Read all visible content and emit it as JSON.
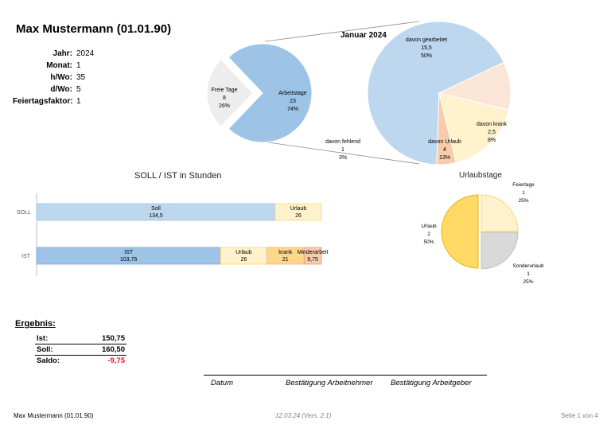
{
  "header": {
    "title": "Max Mustermann (01.01.90)"
  },
  "params": [
    {
      "label": "Jahr:",
      "value": "2024"
    },
    {
      "label": "Monat:",
      "value": "1"
    },
    {
      "label": "h/Wo:",
      "value": "35"
    },
    {
      "label": "d/Wo:",
      "value": "5"
    },
    {
      "label": "Feiertagsfaktor:",
      "value": "1"
    }
  ],
  "colors": {
    "blue_dark": "#9dc3e6",
    "blue_light": "#bdd7ee",
    "grey_light": "#ededed",
    "yellow_light": "#fff2cc",
    "yellow_mid": "#ffe699",
    "orange_mid": "#ffd78a",
    "salmon": "#f8cbad",
    "peach": "#fbe5d6",
    "yellow_strong": "#ffd966",
    "grey_mid": "#d9d9d9",
    "red_text": "#d42020"
  },
  "charts": {
    "monthly_pie": {
      "title": "Januar 2024",
      "slices": [
        {
          "label": "Arbeitstage",
          "value": "23",
          "pct": "74%",
          "num": 23
        },
        {
          "label": "Freie Tage",
          "value": "8",
          "pct": "26%",
          "num": 8
        }
      ]
    },
    "detail_pie": {
      "slices": [
        {
          "label": "davon gearbeitet",
          "value": "15,5",
          "pct": "50%",
          "num": 15.5
        },
        {
          "label": "davon krank",
          "value": "2,5",
          "pct": "8%",
          "num": 2.5
        },
        {
          "label": "davon Urlaub",
          "value": "4",
          "pct": "13%",
          "num": 4
        },
        {
          "label": "davon fehlend",
          "value": "1",
          "pct": "3%",
          "num": 1
        }
      ]
    },
    "bars": {
      "title": "SOLL / IST in Stunden",
      "categories": [
        "SOLL",
        "IST"
      ],
      "soll": [
        {
          "label": "Soll",
          "value": "134,5",
          "num": 134.5
        },
        {
          "label": "Urlaub",
          "value": "26",
          "num": 26
        }
      ],
      "ist": [
        {
          "label": "IST",
          "value": "103,75",
          "num": 103.75
        },
        {
          "label": "Urlaub",
          "value": "26",
          "num": 26
        },
        {
          "label": "krank",
          "value": "21",
          "num": 21
        },
        {
          "label": "Minderarbeit",
          "value": "9,75",
          "num": 9.75
        }
      ]
    },
    "vacation_pie": {
      "title": "Urlaubstage",
      "slices": [
        {
          "label": "Feiertage",
          "value": "1",
          "pct": "25%",
          "num": 1
        },
        {
          "label": "Sonderurlaub",
          "value": "1",
          "pct": "25%",
          "num": 1
        },
        {
          "label": "Urlaub",
          "value": "2",
          "pct": "50%",
          "num": 2
        }
      ]
    }
  },
  "chart_data": [
    {
      "type": "pie",
      "title": "Januar 2024",
      "categories": [
        "Arbeitstage",
        "Freie Tage"
      ],
      "values": [
        23,
        8
      ]
    },
    {
      "type": "pie",
      "title": "",
      "categories": [
        "davon gearbeitet",
        "davon krank",
        "davon Urlaub",
        "davon fehlend"
      ],
      "values": [
        15.5,
        2.5,
        4,
        1
      ]
    },
    {
      "type": "bar",
      "title": "SOLL / IST in Stunden",
      "categories": [
        "SOLL",
        "IST"
      ],
      "series": [
        {
          "name": "Soll",
          "values": [
            134.5,
            0
          ]
        },
        {
          "name": "Urlaub",
          "values": [
            26,
            26
          ]
        },
        {
          "name": "IST",
          "values": [
            0,
            103.75
          ]
        },
        {
          "name": "krank",
          "values": [
            0,
            21
          ]
        },
        {
          "name": "Minderarbeit",
          "values": [
            0,
            9.75
          ]
        }
      ]
    },
    {
      "type": "pie",
      "title": "Urlaubstage",
      "categories": [
        "Feiertage",
        "Sonderurlaub",
        "Urlaub"
      ],
      "values": [
        1,
        1,
        2
      ]
    }
  ],
  "results": {
    "title": "Ergebnis:",
    "rows": [
      {
        "label": "Ist:",
        "value": "150,75"
      },
      {
        "label": "Soll:",
        "value": "160,50"
      },
      {
        "label": "Saldo:",
        "value": "-9,75"
      }
    ]
  },
  "signature": {
    "datum": "Datum",
    "arbeitnehmer": "Bestätigung Arbeitnehmer",
    "arbeitgeber": "Bestätigung Arbeitgeber"
  },
  "footer": {
    "left": "Max Mustermann (01.01.90)",
    "center": "12.03.24 (Vers. 2.1)",
    "right": "Seite 1 von 4"
  }
}
